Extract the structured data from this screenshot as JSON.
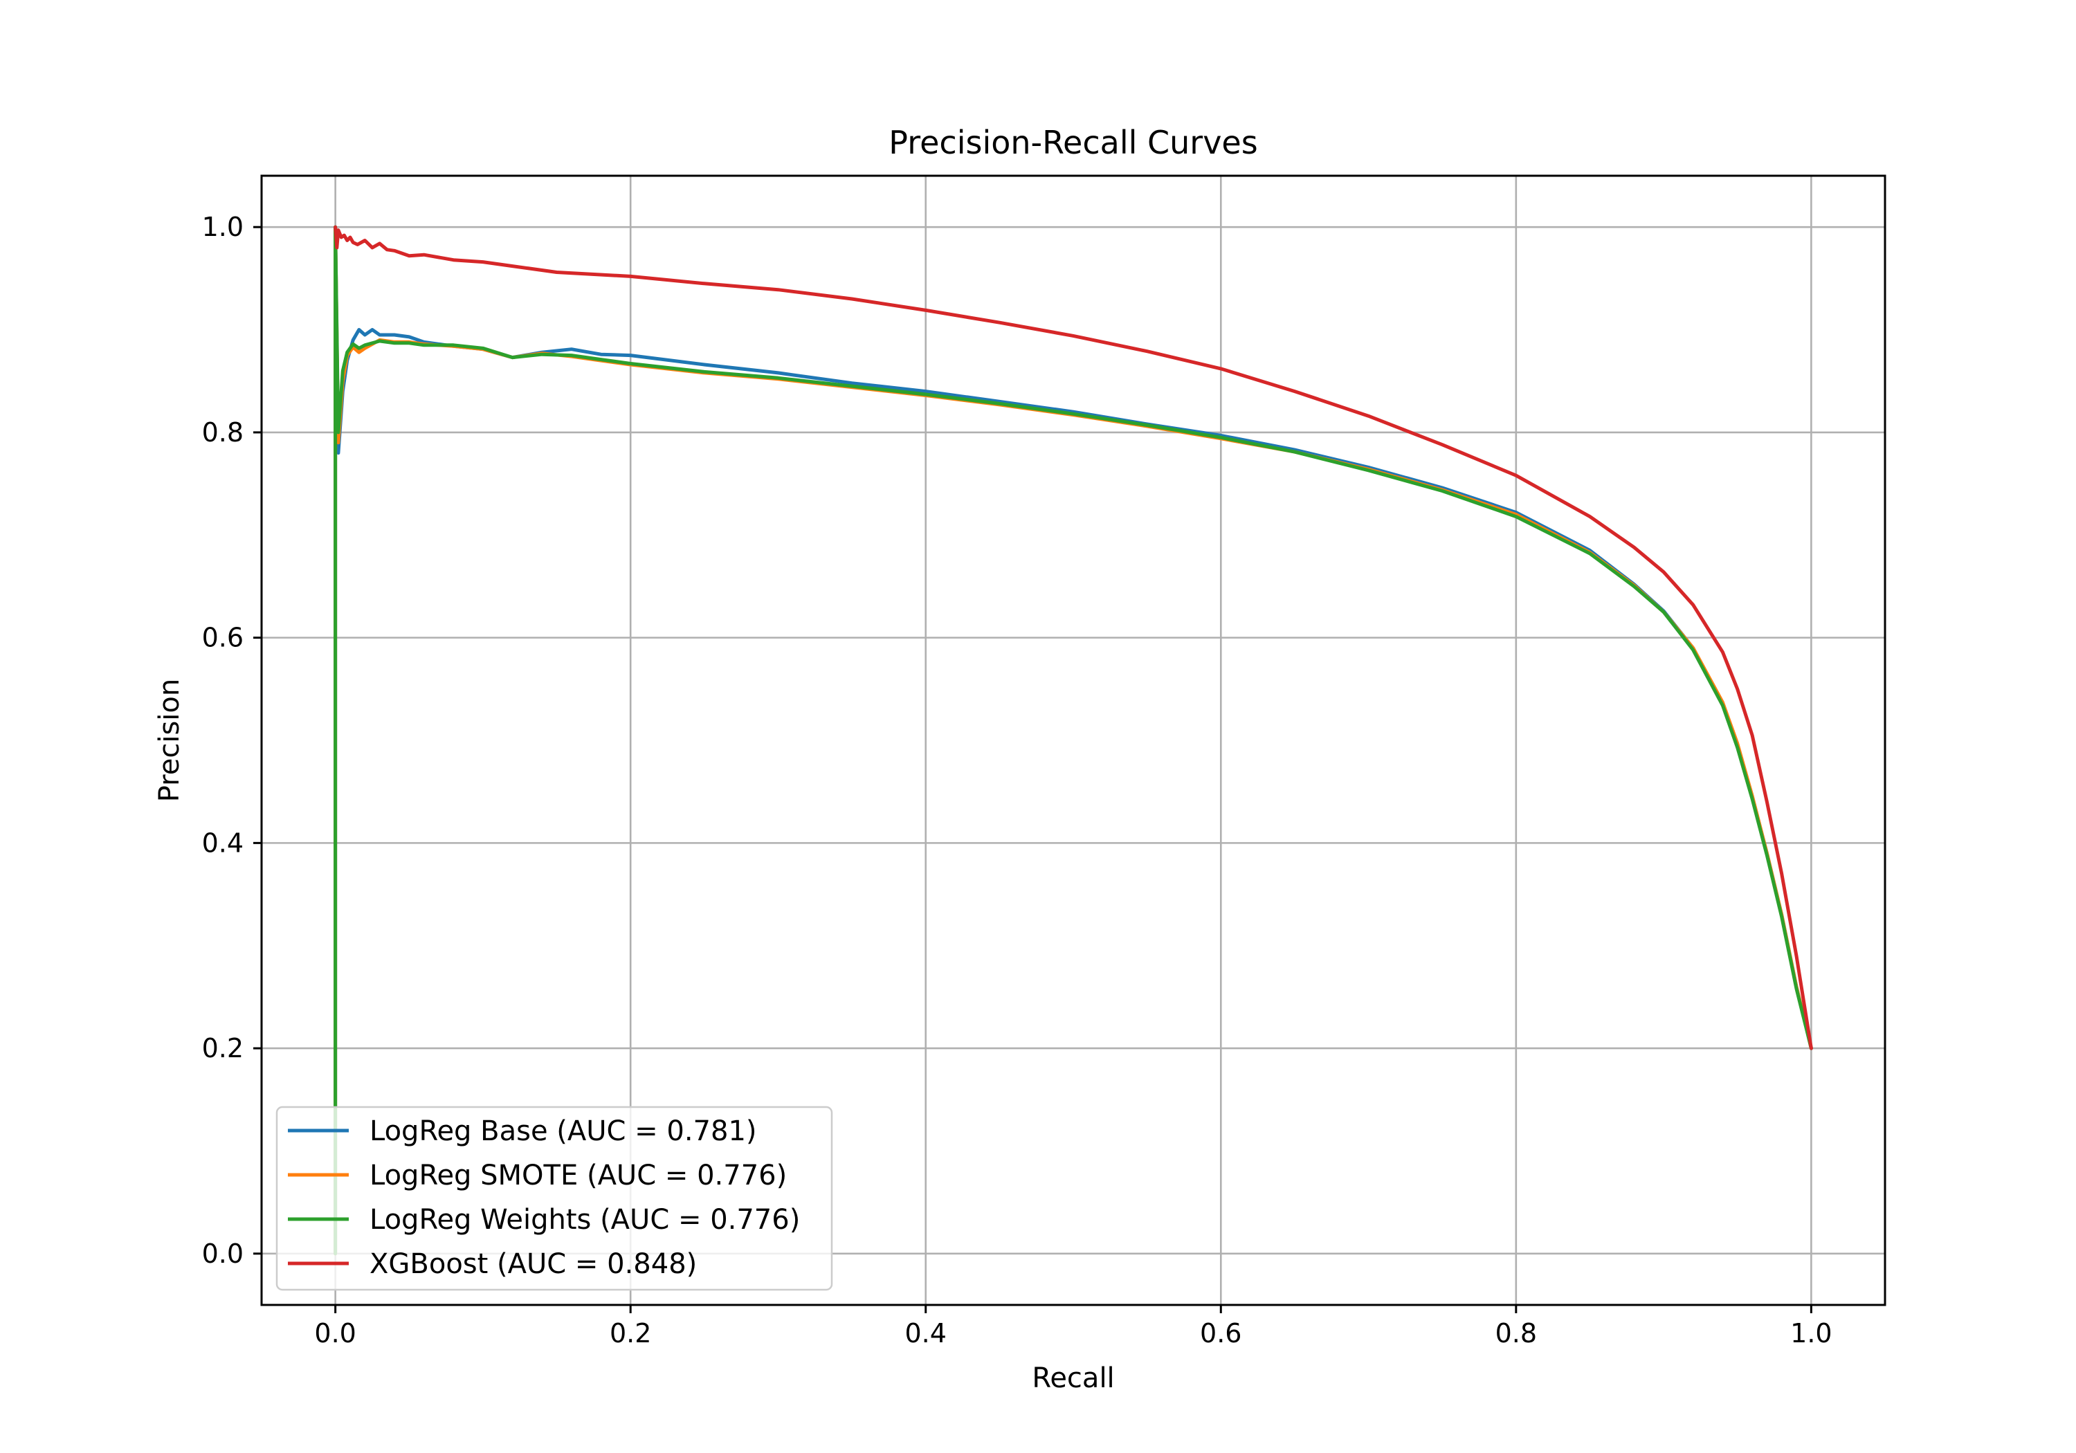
{
  "chart_data": {
    "type": "line",
    "title": "Precision-Recall Curves",
    "xlabel": "Recall",
    "ylabel": "Precision",
    "xlim": [
      -0.05,
      1.05
    ],
    "ylim": [
      -0.05,
      1.05
    ],
    "xticks": [
      0.0,
      0.2,
      0.4,
      0.6,
      0.8,
      1.0
    ],
    "yticks": [
      0.0,
      0.2,
      0.4,
      0.6,
      0.8,
      1.0
    ],
    "xtick_labels": [
      "0.0",
      "0.2",
      "0.4",
      "0.6",
      "0.8",
      "1.0"
    ],
    "ytick_labels": [
      "0.0",
      "0.2",
      "0.4",
      "0.6",
      "0.8",
      "1.0"
    ],
    "grid": true,
    "legend_position": "lower-left",
    "series": [
      {
        "name": "LogReg Base (AUC = 0.781)",
        "color": "#1f77b4",
        "x": [
          0.0,
          0.0,
          0.002,
          0.005,
          0.008,
          0.012,
          0.016,
          0.02,
          0.025,
          0.03,
          0.04,
          0.05,
          0.06,
          0.08,
          0.1,
          0.12,
          0.14,
          0.16,
          0.18,
          0.2,
          0.25,
          0.3,
          0.35,
          0.4,
          0.45,
          0.5,
          0.55,
          0.6,
          0.65,
          0.7,
          0.75,
          0.8,
          0.85,
          0.88,
          0.9,
          0.92,
          0.94,
          0.95,
          0.96,
          0.97,
          0.98,
          0.99,
          1.0
        ],
        "y": [
          0.0,
          1.0,
          0.78,
          0.84,
          0.87,
          0.89,
          0.9,
          0.895,
          0.9,
          0.895,
          0.895,
          0.893,
          0.888,
          0.884,
          0.881,
          0.873,
          0.878,
          0.881,
          0.876,
          0.875,
          0.866,
          0.858,
          0.848,
          0.84,
          0.83,
          0.82,
          0.808,
          0.797,
          0.783,
          0.766,
          0.746,
          0.722,
          0.685,
          0.652,
          0.626,
          0.59,
          0.535,
          0.495,
          0.445,
          0.39,
          0.33,
          0.26,
          0.2
        ]
      },
      {
        "name": "LogReg SMOTE (AUC = 0.776)",
        "color": "#ff7f0e",
        "x": [
          0.0,
          0.0,
          0.002,
          0.005,
          0.008,
          0.012,
          0.016,
          0.02,
          0.03,
          0.04,
          0.05,
          0.06,
          0.08,
          0.1,
          0.12,
          0.14,
          0.16,
          0.18,
          0.2,
          0.25,
          0.3,
          0.35,
          0.4,
          0.45,
          0.5,
          0.55,
          0.6,
          0.65,
          0.7,
          0.75,
          0.8,
          0.85,
          0.88,
          0.9,
          0.92,
          0.94,
          0.95,
          0.96,
          0.97,
          0.98,
          0.99,
          1.0
        ],
        "y": [
          0.0,
          1.0,
          0.79,
          0.85,
          0.875,
          0.883,
          0.878,
          0.882,
          0.89,
          0.888,
          0.888,
          0.886,
          0.884,
          0.881,
          0.873,
          0.877,
          0.874,
          0.87,
          0.866,
          0.858,
          0.852,
          0.844,
          0.836,
          0.827,
          0.817,
          0.806,
          0.794,
          0.781,
          0.764,
          0.744,
          0.72,
          0.683,
          0.651,
          0.625,
          0.59,
          0.537,
          0.497,
          0.446,
          0.39,
          0.33,
          0.26,
          0.2
        ]
      },
      {
        "name": "LogReg Weights (AUC = 0.776)",
        "color": "#2ca02c",
        "x": [
          0.0,
          0.0,
          0.002,
          0.005,
          0.008,
          0.012,
          0.016,
          0.02,
          0.03,
          0.04,
          0.05,
          0.06,
          0.08,
          0.1,
          0.12,
          0.14,
          0.16,
          0.18,
          0.2,
          0.25,
          0.3,
          0.35,
          0.4,
          0.45,
          0.5,
          0.55,
          0.6,
          0.65,
          0.7,
          0.75,
          0.8,
          0.85,
          0.88,
          0.9,
          0.92,
          0.94,
          0.95,
          0.96,
          0.97,
          0.98,
          0.99,
          1.0
        ],
        "y": [
          0.0,
          1.0,
          0.8,
          0.86,
          0.878,
          0.886,
          0.882,
          0.885,
          0.889,
          0.887,
          0.887,
          0.885,
          0.885,
          0.882,
          0.873,
          0.876,
          0.875,
          0.871,
          0.867,
          0.859,
          0.853,
          0.845,
          0.837,
          0.828,
          0.818,
          0.807,
          0.795,
          0.781,
          0.763,
          0.743,
          0.718,
          0.682,
          0.65,
          0.625,
          0.588,
          0.534,
          0.493,
          0.443,
          0.388,
          0.328,
          0.258,
          0.2
        ]
      },
      {
        "name": "XGBoost (AUC = 0.848)",
        "color": "#d62728",
        "x": [
          0.0,
          0.001,
          0.002,
          0.004,
          0.006,
          0.008,
          0.01,
          0.012,
          0.015,
          0.02,
          0.025,
          0.03,
          0.035,
          0.04,
          0.05,
          0.06,
          0.08,
          0.1,
          0.12,
          0.15,
          0.2,
          0.25,
          0.3,
          0.35,
          0.4,
          0.45,
          0.5,
          0.55,
          0.6,
          0.65,
          0.7,
          0.75,
          0.8,
          0.85,
          0.88,
          0.9,
          0.92,
          0.94,
          0.95,
          0.96,
          0.97,
          0.98,
          0.99,
          1.0
        ],
        "y": [
          1.0,
          0.98,
          0.997,
          0.99,
          0.992,
          0.987,
          0.99,
          0.985,
          0.983,
          0.987,
          0.98,
          0.984,
          0.978,
          0.977,
          0.972,
          0.973,
          0.968,
          0.966,
          0.962,
          0.956,
          0.952,
          0.945,
          0.939,
          0.93,
          0.919,
          0.907,
          0.894,
          0.879,
          0.862,
          0.84,
          0.816,
          0.788,
          0.758,
          0.718,
          0.688,
          0.664,
          0.632,
          0.586,
          0.55,
          0.505,
          0.44,
          0.37,
          0.29,
          0.2
        ]
      }
    ]
  }
}
